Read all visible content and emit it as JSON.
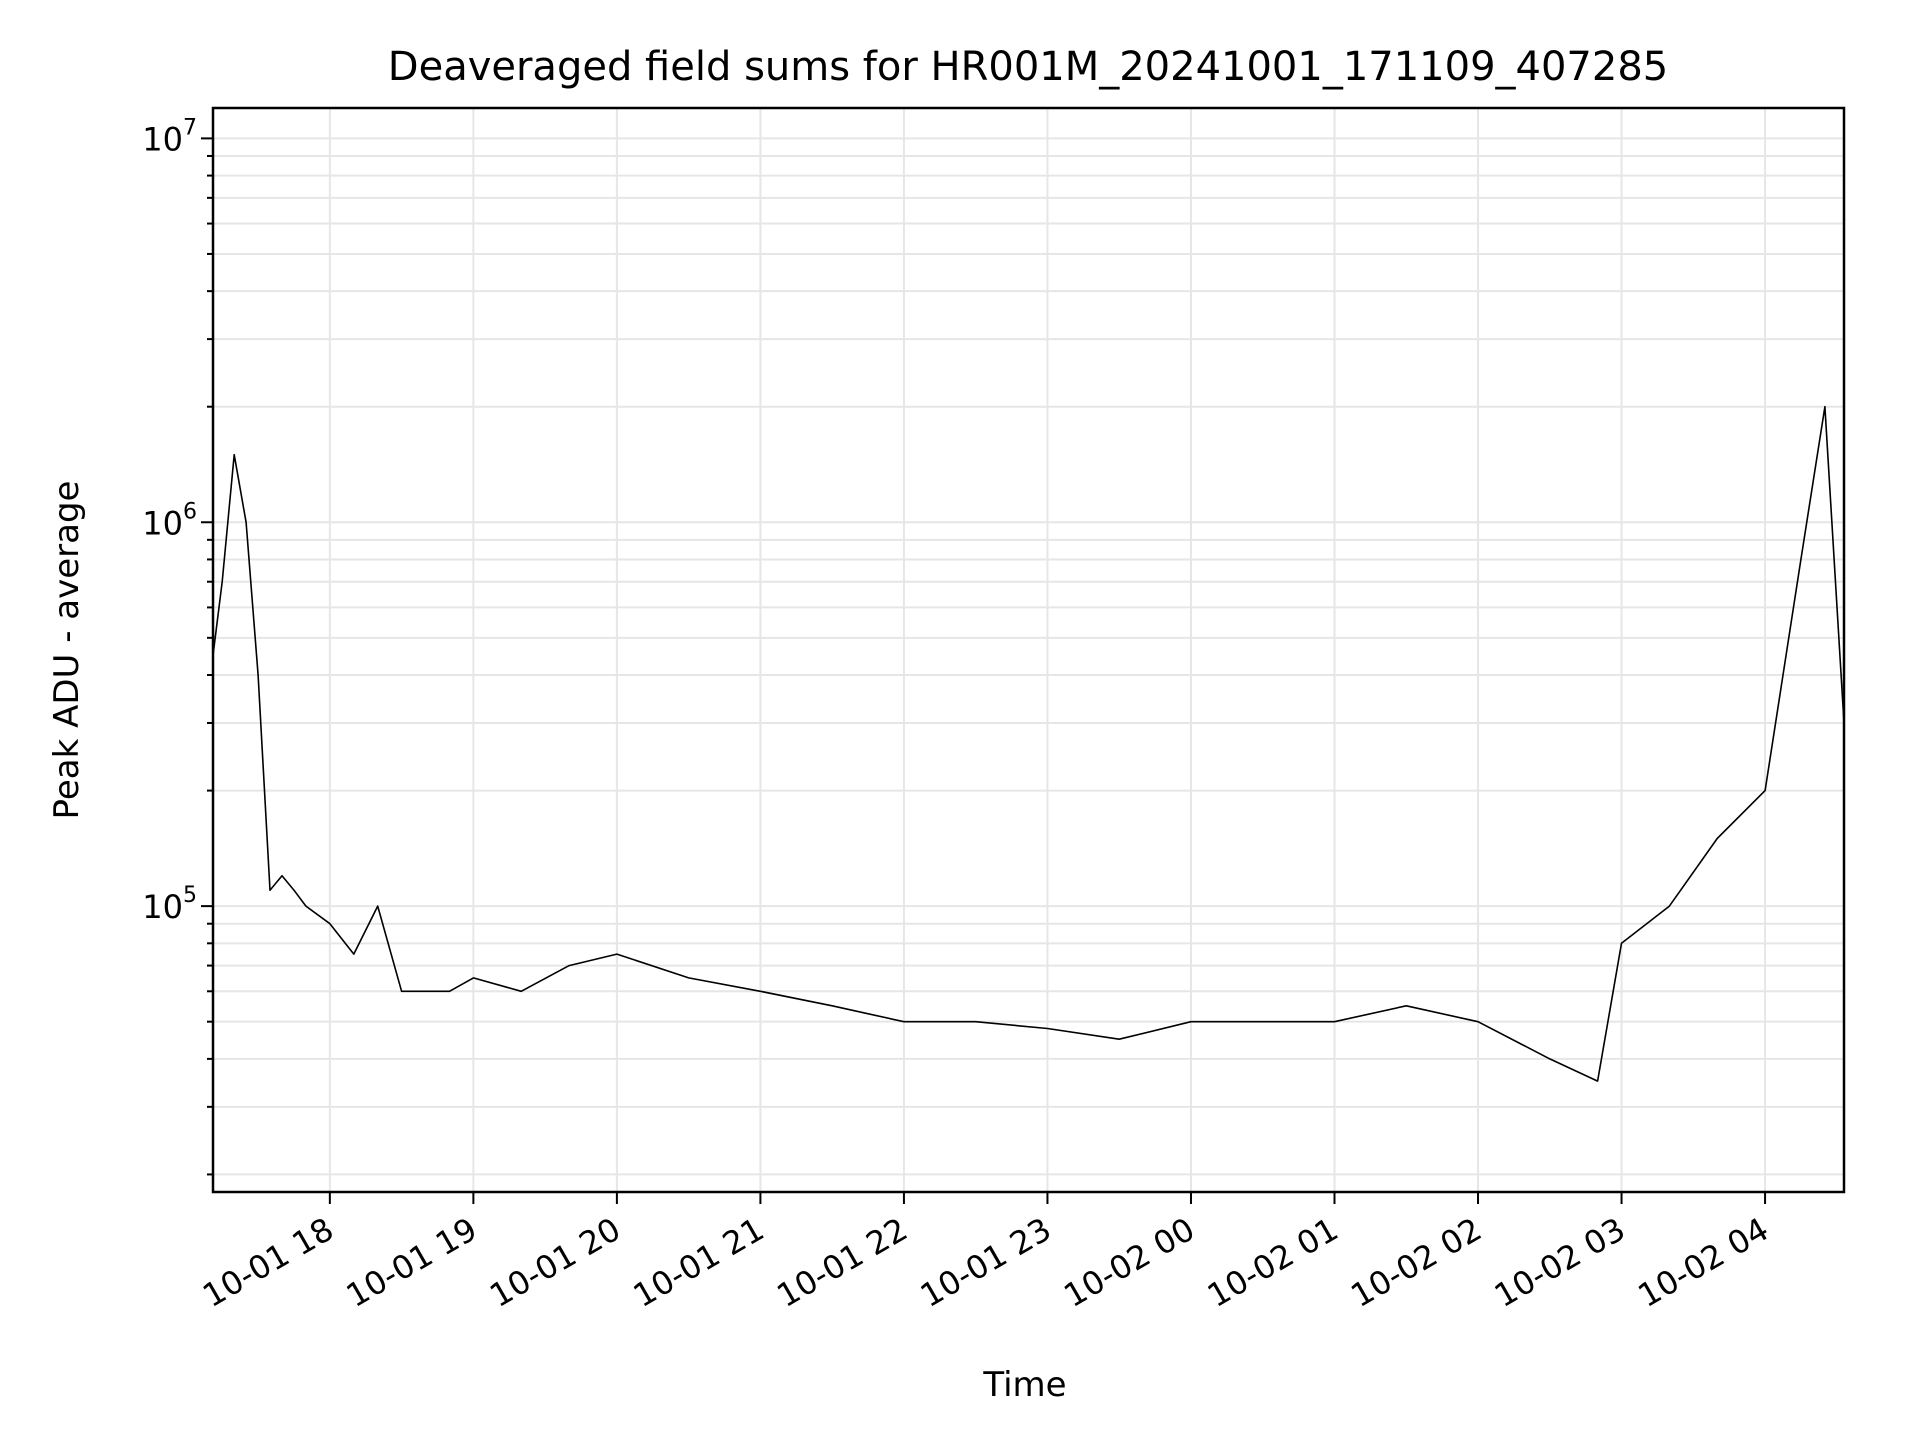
{
  "chart_data": {
    "type": "line",
    "title": "Deaveraged field sums for HR001M_20241001_171109_407285",
    "xlabel": "Time",
    "ylabel": "Peak ADU - average",
    "yscale": "log",
    "ylim": [
      18000,
      12000000
    ],
    "xlim": [
      "2024-10-01T17:11:09",
      "2024-10-02T04:33:00"
    ],
    "x_ticks": [
      {
        "label": "10-01 18",
        "t": "2024-10-01T18:00:00"
      },
      {
        "label": "10-01 19",
        "t": "2024-10-01T19:00:00"
      },
      {
        "label": "10-01 20",
        "t": "2024-10-01T20:00:00"
      },
      {
        "label": "10-01 21",
        "t": "2024-10-01T21:00:00"
      },
      {
        "label": "10-01 22",
        "t": "2024-10-01T22:00:00"
      },
      {
        "label": "10-01 23",
        "t": "2024-10-01T23:00:00"
      },
      {
        "label": "10-02 00",
        "t": "2024-10-02T00:00:00"
      },
      {
        "label": "10-02 01",
        "t": "2024-10-02T01:00:00"
      },
      {
        "label": "10-02 02",
        "t": "2024-10-02T02:00:00"
      },
      {
        "label": "10-02 03",
        "t": "2024-10-02T03:00:00"
      },
      {
        "label": "10-02 04",
        "t": "2024-10-02T04:00:00"
      }
    ],
    "y_ticks": [
      {
        "base": "10",
        "exp": "5",
        "value": 100000
      },
      {
        "base": "10",
        "exp": "6",
        "value": 1000000
      },
      {
        "base": "10",
        "exp": "7",
        "value": 10000000
      }
    ],
    "grid": true,
    "line_color": "#000000",
    "series": [
      {
        "x": [
          "2024-10-01T17:11:09",
          "2024-10-01T17:15:00",
          "2024-10-01T17:20:00",
          "2024-10-01T17:25:00",
          "2024-10-01T17:30:00",
          "2024-10-01T17:35:00",
          "2024-10-01T17:40:00",
          "2024-10-01T17:45:00",
          "2024-10-01T17:50:00",
          "2024-10-01T18:00:00",
          "2024-10-01T18:10:00",
          "2024-10-01T18:20:00",
          "2024-10-01T18:30:00",
          "2024-10-01T18:40:00",
          "2024-10-01T18:50:00",
          "2024-10-01T19:00:00",
          "2024-10-01T19:20:00",
          "2024-10-01T19:40:00",
          "2024-10-01T20:00:00",
          "2024-10-01T20:30:00",
          "2024-10-01T21:00:00",
          "2024-10-01T21:30:00",
          "2024-10-01T22:00:00",
          "2024-10-01T22:30:00",
          "2024-10-01T23:00:00",
          "2024-10-01T23:30:00",
          "2024-10-02T00:00:00",
          "2024-10-02T00:30:00",
          "2024-10-02T01:00:00",
          "2024-10-02T01:30:00",
          "2024-10-02T02:00:00",
          "2024-10-02T02:30:00",
          "2024-10-02T02:50:00",
          "2024-10-02T03:00:00",
          "2024-10-02T03:20:00",
          "2024-10-02T03:40:00",
          "2024-10-02T04:00:00",
          "2024-10-02T04:15:00",
          "2024-10-02T04:25:00",
          "2024-10-02T04:33:00"
        ],
        "y": [
          450000,
          700000,
          1500000,
          1000000,
          400000,
          110000,
          120000,
          110000,
          100000,
          90000,
          75000,
          100000,
          60000,
          60000,
          60000,
          65000,
          60000,
          70000,
          75000,
          65000,
          60000,
          55000,
          50000,
          50000,
          48000,
          45000,
          50000,
          50000,
          50000,
          55000,
          50000,
          40000,
          35000,
          80000,
          100000,
          150000,
          200000,
          800000,
          2000000,
          300000
        ]
      }
    ]
  }
}
